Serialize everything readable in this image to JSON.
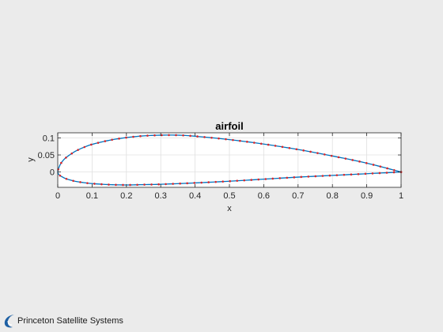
{
  "chart_data": {
    "type": "line",
    "title": "airfoil",
    "xlabel": "x",
    "ylabel": "y",
    "xlim": [
      0,
      1
    ],
    "ylim": [
      -0.045,
      0.115
    ],
    "xticks": [
      0,
      0.1,
      0.2,
      0.3,
      0.4,
      0.5,
      0.6,
      0.7,
      0.8,
      0.9,
      1
    ],
    "xtick_labels": [
      "0",
      "0.1",
      "0.2",
      "0.3",
      "0.4",
      "0.5",
      "0.6",
      "0.7",
      "0.8",
      "0.9",
      "1"
    ],
    "yticks": [
      0,
      0.05,
      0.1
    ],
    "ytick_labels": [
      "0",
      "0.05",
      "0.1"
    ],
    "grid": true,
    "series": [
      {
        "style": "line",
        "color": "#0072bd",
        "upper": {
          "x": [
            1,
            0.9,
            0.8,
            0.7,
            0.6,
            0.5,
            0.4,
            0.35,
            0.3,
            0.25,
            0.2,
            0.15,
            0.1,
            0.075,
            0.05,
            0.025,
            0.0125,
            0.005,
            0
          ],
          "y": [
            0,
            0.026,
            0.047,
            0.066,
            0.082,
            0.095,
            0.105,
            0.108,
            0.108,
            0.106,
            0.101,
            0.093,
            0.081,
            0.072,
            0.06,
            0.043,
            0.03,
            0.017,
            0
          ]
        },
        "lower": {
          "x": [
            0,
            0.005,
            0.0125,
            0.025,
            0.05,
            0.075,
            0.1,
            0.15,
            0.2,
            0.25,
            0.3,
            0.4,
            0.5,
            0.6,
            0.7,
            0.8,
            0.9,
            1
          ],
          "y": [
            0,
            -0.009,
            -0.014,
            -0.02,
            -0.027,
            -0.031,
            -0.034,
            -0.037,
            -0.038,
            -0.037,
            -0.036,
            -0.032,
            -0.027,
            -0.021,
            -0.015,
            -0.01,
            -0.005,
            0
          ]
        }
      },
      {
        "style": "markers",
        "marker": "dot",
        "color": "#d9262c",
        "point_count": 100
      }
    ]
  },
  "branding": {
    "company": "Princeton Satellite Systems",
    "logo_icon": "swoosh-logo-icon",
    "logo_color": "#1d5fa3"
  },
  "colors": {
    "background": "#ebebeb",
    "axes_background": "#ffffff",
    "grid": "#e0e0e0",
    "axis": "#262626"
  }
}
